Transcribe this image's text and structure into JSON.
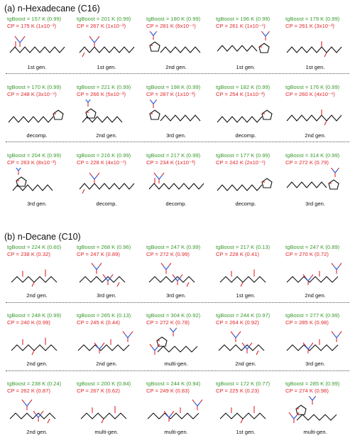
{
  "sections": [
    {
      "title": "(a) n-Hexadecane (C16)",
      "cells": [
        {
          "tg": "tgBoost = 157 K (0.99)",
          "cp": "CP = 175 K (1x10⁻³)",
          "gen": "1st gen.",
          "mol": "A"
        },
        {
          "tg": "tgBoost = 201 K (0.99)",
          "cp": "CP = 267 K (1x10⁻³)",
          "gen": "1st gen.",
          "mol": "B"
        },
        {
          "tg": "tgBoost = 180 K (0.99)",
          "cp": "CP = 281 K (6x10⁻⁴)",
          "gen": "2nd gen.",
          "mol": "C"
        },
        {
          "tg": "tgBoost = 196 K (0.99)",
          "cp": "CP = 261 K (1x10⁻⁴)",
          "gen": "1st gen.",
          "mol": "D"
        },
        {
          "tg": "tgBoost = 179 K (0.99)",
          "cp": "CP = 261 K (3x10⁻³)",
          "gen": "1st gen.",
          "mol": "E"
        },
        {
          "tg": "tgBoost = 170 K (0.99)",
          "cp": "CP = 248 K (3x10⁻⁴)",
          "gen": "decomp.",
          "mol": "F"
        },
        {
          "tg": "tgBoost = 221 K (0.99)",
          "cp": "CP = 266 K (5x10⁻³)",
          "gen": "2nd gen.",
          "mol": "G"
        },
        {
          "tg": "tgBoost = 198 K (0.99)",
          "cp": "CP = 287 K (1x10⁻³)",
          "gen": "3rd gen.",
          "mol": "C"
        },
        {
          "tg": "tgBoost = 182 K (0.99)",
          "cp": "CP = 254 K (1x10⁻³)",
          "gen": "decomp.",
          "mol": "F"
        },
        {
          "tg": "tgBoost = 176 K (0.99)",
          "cp": "CP = 260 K (4x10⁻⁴)",
          "gen": "2nd gen.",
          "mol": "E"
        },
        {
          "tg": "tgBoost = 204 K (0.99)",
          "cp": "CP = 263 K (8x10⁻³)",
          "gen": "3rd gen.",
          "mol": "G"
        },
        {
          "tg": "tgBoost = 216 K (0.99)",
          "cp": "CP = 228 K (4x10⁻⁴)",
          "gen": "decomp.",
          "mol": "B"
        },
        {
          "tg": "tgBoost = 217 K (0.99)",
          "cp": "CP = 234 K (1x10⁻³)",
          "gen": "decomp.",
          "mol": "A"
        },
        {
          "tg": "tgBoost = 177 K (0.99)",
          "cp": "CP = 242 K (2x10⁻⁴)",
          "gen": "decomp.",
          "mol": "F"
        },
        {
          "tg": "tgBoost = 314 K (0.99)",
          "cp": "CP = 272 K (0.79)",
          "gen": "3rd gen.",
          "mol": "D"
        }
      ]
    },
    {
      "title": "(b) n-Decane (C10)",
      "cells": [
        {
          "tg": "tgBoost = 224 K (0.60)",
          "cp": "CP = 238 K (0.32)",
          "gen": "2nd gen.",
          "mol": "H"
        },
        {
          "tg": "tgBoost = 268 K (0.96)",
          "cp": "CP = 247 K (0.89)",
          "gen": "3rd gen.",
          "mol": "I"
        },
        {
          "tg": "tgBoost = 247 K (0.99)",
          "cp": "CP = 272 K (0.99)",
          "gen": "3rd gen.",
          "mol": "I"
        },
        {
          "tg": "tgBoost = 217 K (0.13)",
          "cp": "CP = 228 K (0.41)",
          "gen": "1st gen.",
          "mol": "H"
        },
        {
          "tg": "tgBoost = 247 K (0.89)",
          "cp": "CP = 270 K (0.72)",
          "gen": "2nd gen.",
          "mol": "J"
        },
        {
          "tg": "tgBoost = 248 K (0.99)",
          "cp": "CP = 240 K (0.99)",
          "gen": "2nd gen.",
          "mol": "H"
        },
        {
          "tg": "tgBoost = 265 K (0.13)",
          "cp": "CP = 245 K (0.44)",
          "gen": "2nd gen.",
          "mol": "J"
        },
        {
          "tg": "tgBoost = 304 K (0.92)",
          "cp": "CP = 272 K (0.78)",
          "gen": "multi-gen.",
          "mol": "K"
        },
        {
          "tg": "tgBoost = 244 K (0.97)",
          "cp": "CP = 264 K (0.92)",
          "gen": "2nd gen.",
          "mol": "I"
        },
        {
          "tg": "tgBoost = 277 K (0.99)",
          "cp": "CP = 285 K (0.98)",
          "gen": "3rd gen.",
          "mol": "J"
        },
        {
          "tg": "tgBoost = 238 K (0.24)",
          "cp": "CP = 262 K (0.87)",
          "gen": "2nd gen.",
          "mol": "I"
        },
        {
          "tg": "tgBoost = 200 K (0.84)",
          "cp": "CP = 267 K (0.62)",
          "gen": "multi-gen.",
          "mol": "H"
        },
        {
          "tg": "tgBoost = 244 K (0.94)",
          "cp": "CP = 249 K (0.83)",
          "gen": "multi-gen.",
          "mol": "J"
        },
        {
          "tg": "tgBoost = 172 K (0.77)",
          "cp": "CP = 225 K (0.23)",
          "gen": "1st gen.",
          "mol": "H"
        },
        {
          "tg": "tgBoost = 285 K (0.99)",
          "cp": "CP = 274 K (0.98)",
          "gen": "multi-gen.",
          "mol": "K"
        }
      ]
    }
  ]
}
